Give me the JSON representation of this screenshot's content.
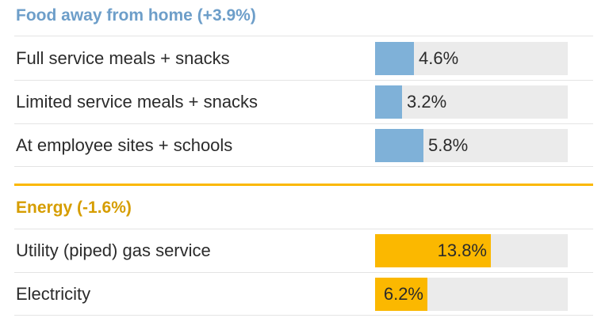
{
  "chart_data": {
    "type": "bar",
    "orientation": "horizontal",
    "xlim": [
      0,
      23
    ],
    "groups": [
      {
        "title": "Food away from home (+3.9%)",
        "color": "#7fb1d8",
        "title_color": "#6d9ec9",
        "categories": [
          "Full service meals + snacks",
          "Limited service meals + snacks",
          "At employee sites + schools"
        ],
        "values": [
          4.6,
          3.2,
          5.8
        ],
        "labels": [
          "4.6%",
          "3.2%",
          "5.8%"
        ]
      },
      {
        "title": "Energy (-1.6%)",
        "color": "#fbb800",
        "title_color": "#d69d00",
        "categories": [
          "Utility (piped) gas service",
          "Electricity"
        ],
        "values": [
          13.8,
          6.2
        ],
        "labels": [
          "13.8%",
          "6.2%"
        ]
      }
    ]
  }
}
